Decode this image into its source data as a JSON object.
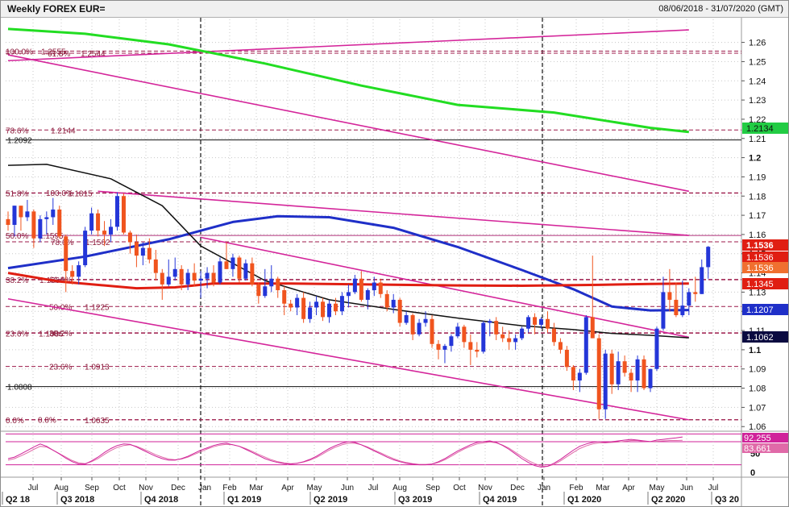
{
  "header": {
    "title": "Weekly FOREX EUR=",
    "date_range": "08/06/2018 - 31/07/2020 (GMT)"
  },
  "chart_data": {
    "type": "candlestick",
    "x_axis": {
      "months": [
        "Jul",
        "Aug",
        "Sep",
        "Oct",
        "Nov",
        "Dec",
        "Jan",
        "Feb",
        "Mar",
        "Apr",
        "May",
        "Jun",
        "Jul",
        "Aug",
        "Sep",
        "Oct",
        "Nov",
        "Dec",
        "Jan",
        "Feb",
        "Mar",
        "Apr",
        "May",
        "Jun",
        "Jul"
      ],
      "quarters": [
        "Q2 18",
        "Q3 2018",
        "Q4 2018",
        "Q1 2019",
        "Q2 2019",
        "Q3 2019",
        "Q4 2019",
        "Q1 2020",
        "Q2 2020",
        "Q3 20"
      ]
    },
    "y_axis": {
      "ticks": [
        "1.26",
        "1.25",
        "1.24",
        "1.23",
        "1.22",
        "1.21",
        "1.2",
        "1.19",
        "1.18",
        "1.17",
        "1.16",
        "1.15",
        "1.14",
        "1.13",
        "1.12",
        "1.11",
        "1.1",
        "1.09",
        "1.08",
        "1.07",
        "1.06"
      ],
      "bold_ticks": [
        "1.2",
        "1.1"
      ],
      "ylim": [
        1.058,
        1.272
      ]
    },
    "ohlc": [
      [
        1.168,
        1.172,
        1.162,
        1.165
      ],
      [
        1.165,
        1.175,
        1.159,
        1.175
      ],
      [
        1.175,
        1.175,
        1.162,
        1.169
      ],
      [
        1.169,
        1.178,
        1.167,
        1.172
      ],
      [
        1.172,
        1.173,
        1.153,
        1.158
      ],
      [
        1.158,
        1.17,
        1.156,
        1.168
      ],
      [
        1.168,
        1.172,
        1.16,
        1.169
      ],
      [
        1.169,
        1.179,
        1.165,
        1.173
      ],
      [
        1.173,
        1.175,
        1.158,
        1.159
      ],
      [
        1.159,
        1.16,
        1.13,
        1.141
      ],
      [
        1.141,
        1.144,
        1.134,
        1.138
      ],
      [
        1.138,
        1.146,
        1.134,
        1.144
      ],
      [
        1.144,
        1.164,
        1.143,
        1.162
      ],
      [
        1.162,
        1.174,
        1.16,
        1.171
      ],
      [
        1.171,
        1.173,
        1.159,
        1.162
      ],
      [
        1.162,
        1.167,
        1.154,
        1.16
      ],
      [
        1.16,
        1.168,
        1.156,
        1.164
      ],
      [
        1.164,
        1.182,
        1.162,
        1.18
      ],
      [
        1.18,
        1.1815,
        1.16,
        1.161
      ],
      [
        1.161,
        1.162,
        1.15,
        1.156
      ],
      [
        1.156,
        1.16,
        1.143,
        1.149
      ],
      [
        1.149,
        1.156,
        1.144,
        1.153
      ],
      [
        1.153,
        1.158,
        1.145,
        1.147
      ],
      [
        1.147,
        1.152,
        1.136,
        1.14
      ],
      [
        1.14,
        1.142,
        1.126,
        1.134
      ],
      [
        1.134,
        1.147,
        1.133,
        1.138
      ],
      [
        1.138,
        1.148,
        1.136,
        1.142
      ],
      [
        1.142,
        1.144,
        1.131,
        1.134
      ],
      [
        1.134,
        1.142,
        1.131,
        1.14
      ],
      [
        1.14,
        1.145,
        1.133,
        1.136
      ],
      [
        1.136,
        1.141,
        1.127,
        1.137
      ],
      [
        1.137,
        1.143,
        1.132,
        1.14
      ],
      [
        1.14,
        1.144,
        1.133,
        1.135
      ],
      [
        1.135,
        1.148,
        1.134,
        1.146
      ],
      [
        1.146,
        1.156,
        1.142,
        1.142
      ],
      [
        1.142,
        1.15,
        1.138,
        1.148
      ],
      [
        1.148,
        1.149,
        1.135,
        1.137
      ],
      [
        1.137,
        1.147,
        1.136,
        1.145
      ],
      [
        1.145,
        1.148,
        1.133,
        1.134
      ],
      [
        1.134,
        1.135,
        1.124,
        1.128
      ],
      [
        1.128,
        1.142,
        1.127,
        1.133
      ],
      [
        1.133,
        1.144,
        1.13,
        1.137
      ],
      [
        1.137,
        1.138,
        1.127,
        1.131
      ],
      [
        1.131,
        1.133,
        1.118,
        1.124
      ],
      [
        1.124,
        1.126,
        1.12,
        1.122
      ],
      [
        1.122,
        1.129,
        1.118,
        1.127
      ],
      [
        1.127,
        1.13,
        1.114,
        1.116
      ],
      [
        1.116,
        1.125,
        1.114,
        1.122
      ],
      [
        1.122,
        1.128,
        1.118,
        1.125
      ],
      [
        1.125,
        1.127,
        1.115,
        1.117
      ],
      [
        1.117,
        1.126,
        1.114,
        1.124
      ],
      [
        1.124,
        1.127,
        1.118,
        1.12
      ],
      [
        1.12,
        1.13,
        1.118,
        1.128
      ],
      [
        1.128,
        1.134,
        1.122,
        1.13
      ],
      [
        1.13,
        1.139,
        1.129,
        1.137
      ],
      [
        1.137,
        1.141,
        1.125,
        1.126
      ],
      [
        1.126,
        1.132,
        1.121,
        1.131
      ],
      [
        1.131,
        1.138,
        1.128,
        1.135
      ],
      [
        1.135,
        1.137,
        1.127,
        1.129
      ],
      [
        1.129,
        1.131,
        1.12,
        1.122
      ],
      [
        1.122,
        1.129,
        1.119,
        1.126
      ],
      [
        1.126,
        1.127,
        1.112,
        1.114
      ],
      [
        1.114,
        1.12,
        1.113,
        1.118
      ],
      [
        1.118,
        1.119,
        1.105,
        1.108
      ],
      [
        1.108,
        1.116,
        1.107,
        1.114
      ],
      [
        1.114,
        1.12,
        1.112,
        1.116
      ],
      [
        1.116,
        1.118,
        1.101,
        1.103
      ],
      [
        1.103,
        1.105,
        1.095,
        1.1
      ],
      [
        1.1,
        1.103,
        1.093,
        1.102
      ],
      [
        1.102,
        1.108,
        1.099,
        1.107
      ],
      [
        1.107,
        1.114,
        1.106,
        1.112
      ],
      [
        1.112,
        1.113,
        1.101,
        1.104
      ],
      [
        1.104,
        1.108,
        1.092,
        1.1
      ],
      [
        1.1,
        1.104,
        1.096,
        1.099
      ],
      [
        1.099,
        1.115,
        1.098,
        1.114
      ],
      [
        1.114,
        1.116,
        1.107,
        1.115
      ],
      [
        1.115,
        1.117,
        1.105,
        1.108
      ],
      [
        1.108,
        1.112,
        1.104,
        1.106
      ],
      [
        1.106,
        1.11,
        1.1,
        1.104
      ],
      [
        1.104,
        1.108,
        1.1,
        1.106
      ],
      [
        1.106,
        1.112,
        1.105,
        1.111
      ],
      [
        1.111,
        1.118,
        1.109,
        1.117
      ],
      [
        1.117,
        1.119,
        1.108,
        1.113
      ],
      [
        1.113,
        1.117,
        1.111,
        1.116
      ],
      [
        1.116,
        1.12,
        1.109,
        1.111
      ],
      [
        1.111,
        1.114,
        1.102,
        1.104
      ],
      [
        1.104,
        1.106,
        1.098,
        1.1
      ],
      [
        1.1,
        1.102,
        1.089,
        1.091
      ],
      [
        1.091,
        1.092,
        1.079,
        1.084
      ],
      [
        1.084,
        1.09,
        1.078,
        1.088
      ],
      [
        1.088,
        1.118,
        1.087,
        1.117
      ],
      [
        1.117,
        1.149,
        1.106,
        1.106
      ],
      [
        1.106,
        1.108,
        1.064,
        1.069
      ],
      [
        1.069,
        1.1,
        1.064,
        1.098
      ],
      [
        1.098,
        1.1,
        1.077,
        1.082
      ],
      [
        1.082,
        1.099,
        1.079,
        1.094
      ],
      [
        1.094,
        1.097,
        1.086,
        1.088
      ],
      [
        1.088,
        1.09,
        1.078,
        1.084
      ],
      [
        1.084,
        1.097,
        1.078,
        1.095
      ],
      [
        1.095,
        1.097,
        1.079,
        1.08
      ],
      [
        1.08,
        1.09,
        1.078,
        1.09
      ],
      [
        1.09,
        1.112,
        1.089,
        1.111
      ],
      [
        1.111,
        1.138,
        1.11,
        1.13
      ],
      [
        1.13,
        1.142,
        1.12,
        1.126
      ],
      [
        1.126,
        1.135,
        1.117,
        1.118
      ],
      [
        1.118,
        1.136,
        1.117,
        1.123
      ],
      [
        1.123,
        1.132,
        1.118,
        1.13
      ],
      [
        1.13,
        1.138,
        1.125,
        1.129
      ],
      [
        1.129,
        1.147,
        1.129,
        1.143
      ],
      [
        1.143,
        1.154,
        1.137,
        1.1536
      ]
    ],
    "moving_averages": [
      {
        "name": "green",
        "color": "#22dd22",
        "x": [
          0,
          12,
          25,
          40,
          55,
          70,
          85,
          100,
          106
        ],
        "y": [
          1.267,
          1.2645,
          1.259,
          1.249,
          1.2375,
          1.2275,
          1.2235,
          1.2155,
          1.2134
        ]
      },
      {
        "name": "blue",
        "color": "#1f2fc8",
        "x": [
          0,
          12,
          25,
          35,
          42,
          50,
          60,
          70,
          80,
          88,
          94,
          100,
          106
        ],
        "y": [
          1.1425,
          1.1485,
          1.1575,
          1.1665,
          1.1695,
          1.169,
          1.1635,
          1.1535,
          1.1415,
          1.1315,
          1.1225,
          1.1205,
          1.1207
        ]
      },
      {
        "name": "black",
        "color": "#111111",
        "x": [
          0,
          6,
          16,
          24,
          30,
          40,
          50,
          60,
          70,
          80,
          88,
          94,
          100,
          106
        ],
        "y": [
          1.196,
          1.1965,
          1.189,
          1.175,
          1.154,
          1.136,
          1.126,
          1.121,
          1.1165,
          1.1125,
          1.1105,
          1.1085,
          1.1075,
          1.1062
        ]
      },
      {
        "name": "red",
        "color": "#e01e12",
        "x": [
          0,
          8,
          20,
          26,
          32,
          44,
          56,
          70,
          80,
          92,
          100,
          106
        ],
        "y": [
          1.14,
          1.1355,
          1.132,
          1.1325,
          1.1345,
          1.1345,
          1.134,
          1.1335,
          1.1333,
          1.1338,
          1.1343,
          1.1345
        ]
      }
    ],
    "trend_lines": [
      {
        "x": [
          0,
          106
        ],
        "y": [
          1.2505,
          1.2665
        ]
      },
      {
        "x": [
          0,
          106
        ],
        "y": [
          1.2535,
          1.1825
        ]
      },
      {
        "x": [
          14,
          106
        ],
        "y": [
          1.1825,
          1.1595
        ]
      },
      {
        "x": [
          30,
          106
        ],
        "y": [
          1.1585,
          1.1065
        ]
      },
      {
        "x": [
          0,
          106
        ],
        "y": [
          1.1265,
          1.0635
        ]
      }
    ],
    "levels": [
      {
        "value": 1.2555,
        "style": "dashed",
        "labels": [
          "100.0%",
          "1.2555"
        ]
      },
      {
        "value": 1.2544,
        "style": "dashed",
        "labels": [
          "61.8%",
          "1.2544"
        ]
      },
      {
        "value": 1.2144,
        "style": "dashed",
        "labels": [
          "78.6%",
          "1.2144"
        ]
      },
      {
        "value": 1.2092,
        "style": "solid",
        "labels": [
          "1.2092"
        ]
      },
      {
        "value": 1.1815,
        "style": "dashed",
        "labels": [
          "51.8%",
          "1.1815"
        ]
      },
      {
        "value": 1.1817,
        "style": "dashed",
        "labels": [
          "100.0%"
        ]
      },
      {
        "value": 1.1595,
        "style": "solid",
        "labels": [
          "50.0%",
          "1.1595"
        ]
      },
      {
        "value": 1.1562,
        "style": "dashed",
        "labels": [
          "78.6%",
          "1.1562"
        ]
      },
      {
        "value": 1.1364,
        "style": "dashed",
        "labels": [
          "38.2%",
          "1.1364"
        ]
      },
      {
        "value": 1.1366,
        "style": "dashed",
        "labels": [
          "61.8%"
        ]
      },
      {
        "value": 1.1225,
        "style": "dashed",
        "labels": [
          "50.0%",
          "1.1225"
        ]
      },
      {
        "value": 1.1086,
        "style": "dashed",
        "labels": [
          "23.6%",
          "1.1086"
        ]
      },
      {
        "value": 1.1088,
        "style": "dashed",
        "labels": [
          "38.2%"
        ]
      },
      {
        "value": 1.0913,
        "style": "dashed",
        "labels": [
          "23.6%",
          "1.0913"
        ]
      },
      {
        "value": 1.0808,
        "style": "solid",
        "labels": [
          "1.0808"
        ]
      },
      {
        "value": 1.0635,
        "style": "dashed",
        "labels": [
          "0.0%",
          "1.0635"
        ]
      },
      {
        "value": 1.0636,
        "style": "dashed",
        "labels": [
          "0.0%"
        ]
      }
    ],
    "price_tags": [
      {
        "text": "1.1536",
        "color": "#e01e12",
        "bold": true
      },
      {
        "text": "1.1536",
        "color": "#e01e12",
        "bold": false
      },
      {
        "text": "1.1536",
        "color": "#f07030",
        "bold": false
      },
      {
        "text": "1.1345",
        "color": "#e01e12",
        "bold": false
      },
      {
        "text": "1.1207",
        "color": "#1f2fc8",
        "bold": false
      },
      {
        "text": "1.1062",
        "color": "#0a0a40",
        "bold": false
      },
      {
        "text": "1.2134",
        "color": "#22cc44",
        "bold": false
      }
    ],
    "oscillator": {
      "ticks": [
        "50",
        "0"
      ],
      "ylim": [
        -8,
        105
      ],
      "bands": [
        100,
        80,
        20
      ],
      "values": {
        "line1": "92.255",
        "line2": "83.661"
      },
      "line1_color": "#d0239a",
      "line2_color": "#e06aa8",
      "line1": [
        36,
        40,
        48,
        57,
        66,
        74,
        68,
        58,
        48,
        37,
        28,
        22,
        22,
        30,
        40,
        52,
        62,
        70,
        74,
        73,
        66,
        58,
        50,
        42,
        36,
        32,
        32,
        36,
        42,
        50,
        58,
        64,
        70,
        74,
        76,
        72,
        68,
        60,
        52,
        44,
        36,
        30,
        26,
        23,
        22,
        24,
        28,
        34,
        42,
        52,
        62,
        70,
        76,
        80,
        78,
        72,
        64,
        56,
        48,
        40,
        33,
        28,
        24,
        22,
        20,
        20,
        22,
        28,
        36,
        46,
        56,
        64,
        72,
        78,
        80,
        82,
        78,
        70,
        60,
        48,
        36,
        26,
        18,
        14,
        16,
        24,
        34,
        46,
        58,
        68,
        74,
        78,
        80,
        78,
        80,
        82,
        84,
        86,
        84,
        82,
        80,
        84,
        86,
        88,
        90,
        92.255
      ],
      "line2": [
        32,
        36,
        43,
        51,
        60,
        68,
        66,
        58,
        49,
        40,
        31,
        25,
        23,
        28,
        36,
        47,
        57,
        65,
        70,
        72,
        68,
        61,
        54,
        46,
        40,
        35,
        33,
        35,
        40,
        47,
        54,
        61,
        67,
        71,
        73,
        72,
        68,
        62,
        55,
        47,
        40,
        33,
        28,
        25,
        23,
        24,
        27,
        32,
        39,
        48,
        58,
        66,
        72,
        76,
        76,
        72,
        66,
        58,
        51,
        43,
        36,
        30,
        26,
        23,
        21,
        21,
        22,
        26,
        33,
        42,
        52,
        61,
        68,
        74,
        77,
        79,
        77,
        71,
        63,
        52,
        41,
        31,
        23,
        17,
        16,
        21,
        30,
        41,
        52,
        62,
        69,
        74,
        77,
        77,
        78,
        79,
        81,
        83,
        83,
        81,
        80,
        81,
        82,
        83,
        83,
        83.661
      ]
    }
  }
}
